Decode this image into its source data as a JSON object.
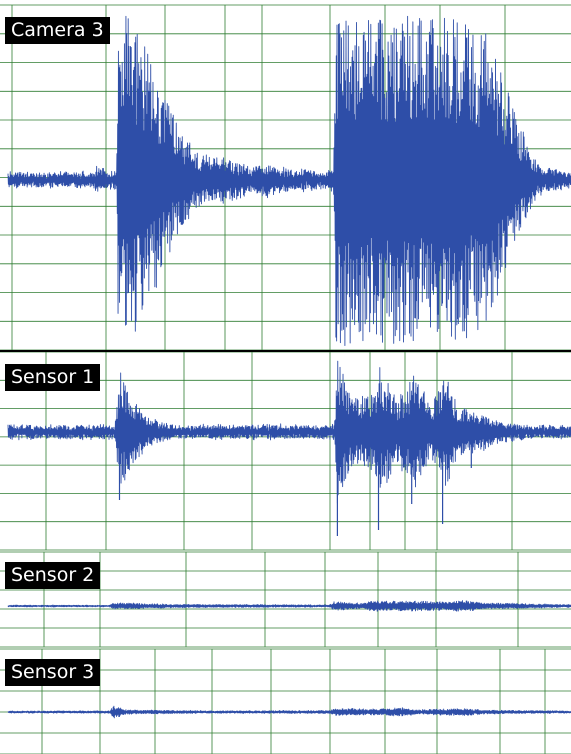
{
  "chart_data": {
    "type": "line",
    "layout": "stacked-panels",
    "x_axis": {
      "tick_labels_shown": false,
      "grid": true
    },
    "y_axis": {
      "tick_labels_shown": false,
      "grid": true
    },
    "colors": {
      "trace": "#2e4ea8",
      "grid": "#2f7d32",
      "label_bg": "#000000",
      "label_text": "#ffffff",
      "divider": "#000000"
    },
    "events_x_fraction": [
      0.195,
      0.585,
      0.655,
      0.715,
      0.77,
      0.825
    ],
    "panels": [
      {
        "label": "Camera 3",
        "baseline_amplitude": 0.04,
        "envelope": [
          [
            0.0,
            0.04
          ],
          [
            0.15,
            0.04
          ],
          [
            0.16,
            0.09
          ],
          [
            0.175,
            0.05
          ],
          [
            0.193,
            0.05
          ],
          [
            0.196,
            0.98
          ],
          [
            0.22,
            0.95
          ],
          [
            0.25,
            0.75
          ],
          [
            0.28,
            0.5
          ],
          [
            0.31,
            0.26
          ],
          [
            0.34,
            0.16
          ],
          [
            0.37,
            0.14
          ],
          [
            0.41,
            0.11
          ],
          [
            0.43,
            0.07
          ],
          [
            0.46,
            0.1
          ],
          [
            0.475,
            0.08
          ],
          [
            0.5,
            0.06
          ],
          [
            0.53,
            0.06
          ],
          [
            0.56,
            0.05
          ],
          [
            0.578,
            0.06
          ],
          [
            0.582,
            0.98
          ],
          [
            0.62,
            0.97
          ],
          [
            0.66,
            0.95
          ],
          [
            0.7,
            0.96
          ],
          [
            0.74,
            0.95
          ],
          [
            0.78,
            0.95
          ],
          [
            0.82,
            0.93
          ],
          [
            0.85,
            0.85
          ],
          [
            0.87,
            0.7
          ],
          [
            0.89,
            0.5
          ],
          [
            0.91,
            0.32
          ],
          [
            0.93,
            0.16
          ],
          [
            0.95,
            0.08
          ],
          [
            1.0,
            0.04
          ]
        ]
      },
      {
        "label": "Sensor 1",
        "baseline_amplitude": 0.045,
        "envelope": [
          [
            0.0,
            0.06
          ],
          [
            0.19,
            0.06
          ],
          [
            0.2,
            0.55
          ],
          [
            0.22,
            0.3
          ],
          [
            0.25,
            0.12
          ],
          [
            0.3,
            0.06
          ],
          [
            0.58,
            0.06
          ],
          [
            0.585,
            0.7
          ],
          [
            0.61,
            0.3
          ],
          [
            0.65,
            0.35
          ],
          [
            0.66,
            0.6
          ],
          [
            0.69,
            0.3
          ],
          [
            0.71,
            0.4
          ],
          [
            0.72,
            0.55
          ],
          [
            0.75,
            0.25
          ],
          [
            0.77,
            0.45
          ],
          [
            0.78,
            0.55
          ],
          [
            0.8,
            0.22
          ],
          [
            0.83,
            0.2
          ],
          [
            0.87,
            0.1
          ],
          [
            0.92,
            0.06
          ],
          [
            1.0,
            0.05
          ]
        ]
      },
      {
        "label": "Sensor 2",
        "baseline_amplitude": 0.03,
        "envelope": [
          [
            0.0,
            0.03
          ],
          [
            0.18,
            0.03
          ],
          [
            0.19,
            0.13
          ],
          [
            0.3,
            0.06
          ],
          [
            0.57,
            0.04
          ],
          [
            0.58,
            0.17
          ],
          [
            0.63,
            0.1
          ],
          [
            0.65,
            0.2
          ],
          [
            0.7,
            0.18
          ],
          [
            0.72,
            0.2
          ],
          [
            0.76,
            0.16
          ],
          [
            0.81,
            0.22
          ],
          [
            0.85,
            0.12
          ],
          [
            0.9,
            0.1
          ],
          [
            1.0,
            0.05
          ]
        ]
      },
      {
        "label": "Sensor 3",
        "baseline_amplitude": 0.025,
        "envelope": [
          [
            0.0,
            0.025
          ],
          [
            0.18,
            0.03
          ],
          [
            0.188,
            0.17
          ],
          [
            0.21,
            0.06
          ],
          [
            0.35,
            0.03
          ],
          [
            0.57,
            0.04
          ],
          [
            0.585,
            0.1
          ],
          [
            0.65,
            0.08
          ],
          [
            0.7,
            0.12
          ],
          [
            0.73,
            0.06
          ],
          [
            0.81,
            0.1
          ],
          [
            0.85,
            0.05
          ],
          [
            1.0,
            0.03
          ]
        ]
      }
    ]
  }
}
